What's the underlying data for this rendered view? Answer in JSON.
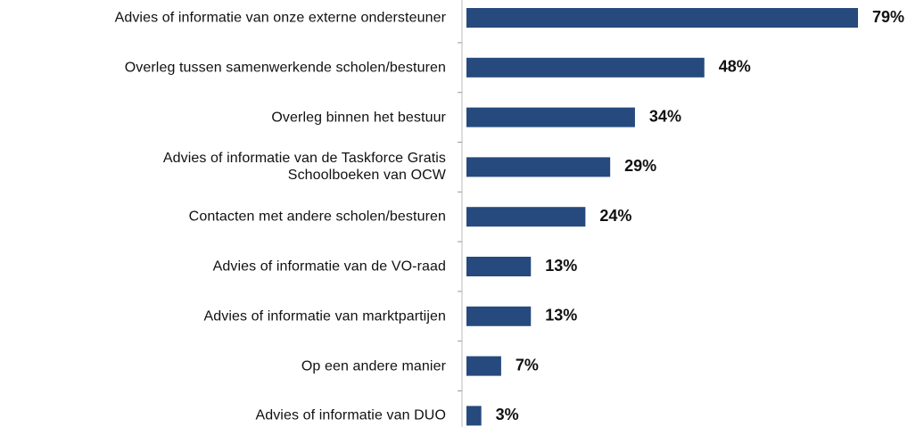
{
  "chart_data": {
    "type": "bar",
    "orientation": "horizontal",
    "categories": [
      "Advies of informatie van onze externe ondersteuner",
      "Overleg tussen samenwerkende scholen/besturen",
      "Overleg binnen het bestuur",
      "Advies of informatie van de Taskforce Gratis\nSchoolboeken van OCW",
      "Contacten met andere scholen/besturen",
      "Advies of informatie van de VO-raad",
      "Advies of informatie van marktpartijen",
      "Op een andere manier",
      "Advies of informatie van DUO"
    ],
    "values": [
      79,
      48,
      34,
      29,
      24,
      13,
      13,
      7,
      3
    ],
    "value_labels": [
      "79%",
      "48%",
      "34%",
      "29%",
      "24%",
      "13%",
      "13%",
      "7%",
      "3%"
    ],
    "color": "#264a7d"
  }
}
